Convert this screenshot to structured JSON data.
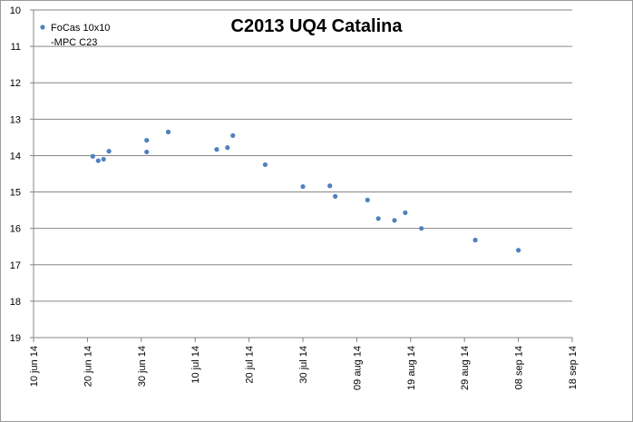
{
  "chart_data": {
    "type": "scatter",
    "title": "C2013 UQ4 Catalina",
    "xlabel": "",
    "ylabel": "",
    "y_reversed": true,
    "ylim": [
      10,
      19
    ],
    "y_ticks": [
      "10",
      "11",
      "12",
      "13",
      "14",
      "15",
      "16",
      "17",
      "18",
      "19"
    ],
    "xlim": [
      "2014-06-10",
      "2014-09-18"
    ],
    "x_ticks": [
      {
        "date": "2014-06-10",
        "label": "10 jun 14"
      },
      {
        "date": "2014-06-20",
        "label": "20 jun 14"
      },
      {
        "date": "2014-06-30",
        "label": "30 jun 14"
      },
      {
        "date": "2014-07-10",
        "label": "10 jul 14"
      },
      {
        "date": "2014-07-20",
        "label": "20 jul 14"
      },
      {
        "date": "2014-07-30",
        "label": "30 jul 14"
      },
      {
        "date": "2014-08-09",
        "label": "09 aug 14"
      },
      {
        "date": "2014-08-19",
        "label": "19 aug 14"
      },
      {
        "date": "2014-08-29",
        "label": "29 aug 14"
      },
      {
        "date": "2014-09-08",
        "label": "08 sep 14"
      },
      {
        "date": "2014-09-18",
        "label": "18 sep 14"
      }
    ],
    "grid": {
      "horizontal": true,
      "vertical": false
    },
    "legend": {
      "position": "top-left",
      "entries": [
        "FoCas 10x10",
        "-MPC C23"
      ]
    },
    "marker_color": "#4f81bd",
    "series": [
      {
        "name": "FoCas 10x10 -MPC C23",
        "points": [
          {
            "x": "2014-06-21",
            "y": 14.02
          },
          {
            "x": "2014-06-22",
            "y": 14.14
          },
          {
            "x": "2014-06-23",
            "y": 14.1
          },
          {
            "x": "2014-06-24",
            "y": 13.88
          },
          {
            "x": "2014-07-01",
            "y": 13.9
          },
          {
            "x": "2014-07-01",
            "y": 13.58
          },
          {
            "x": "2014-07-05",
            "y": 13.35
          },
          {
            "x": "2014-07-14",
            "y": 13.83
          },
          {
            "x": "2014-07-16",
            "y": 13.78
          },
          {
            "x": "2014-07-17",
            "y": 13.45
          },
          {
            "x": "2014-07-23",
            "y": 14.25
          },
          {
            "x": "2014-07-30",
            "y": 14.85
          },
          {
            "x": "2014-08-04",
            "y": 14.83
          },
          {
            "x": "2014-08-05",
            "y": 15.12
          },
          {
            "x": "2014-08-11",
            "y": 15.22
          },
          {
            "x": "2014-08-13",
            "y": 15.73
          },
          {
            "x": "2014-08-16",
            "y": 15.78
          },
          {
            "x": "2014-08-18",
            "y": 15.57
          },
          {
            "x": "2014-08-21",
            "y": 16.0
          },
          {
            "x": "2014-08-31",
            "y": 16.32
          },
          {
            "x": "2014-09-08",
            "y": 16.6
          }
        ]
      }
    ]
  }
}
